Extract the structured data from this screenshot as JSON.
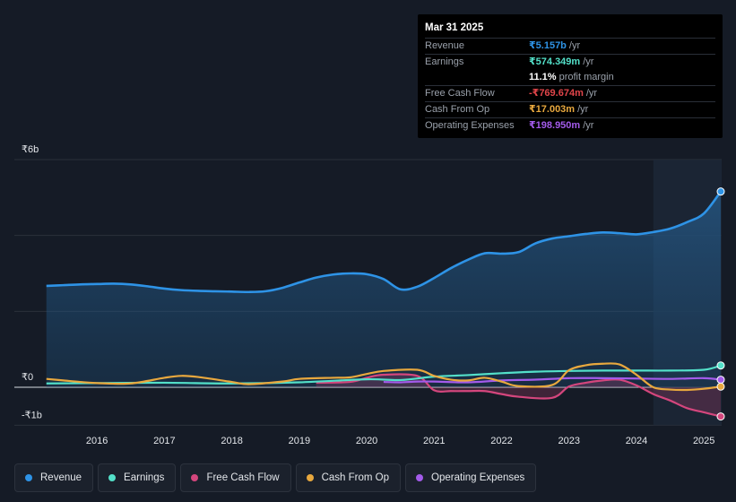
{
  "tooltip": {
    "date": "Mar 31 2025",
    "rows": [
      {
        "label": "Revenue",
        "value": "₹5.157b",
        "unit": "/yr",
        "color": "#2e93e6"
      },
      {
        "label": "Earnings",
        "value": "₹574.349m",
        "unit": "/yr",
        "color": "#53e0c9"
      },
      {
        "label": "",
        "value": "11.1%",
        "unit": "profit margin",
        "color": "#ffffff"
      },
      {
        "label": "Free Cash Flow",
        "value": "-₹769.674m",
        "unit": "/yr",
        "color": "#e0454a"
      },
      {
        "label": "Cash From Op",
        "value": "₹17.003m",
        "unit": "/yr",
        "color": "#e8a83e"
      },
      {
        "label": "Operating Expenses",
        "value": "₹198.950m",
        "unit": "/yr",
        "color": "#a35bea"
      }
    ]
  },
  "legend": [
    {
      "label": "Revenue",
      "color": "#2e93e6"
    },
    {
      "label": "Earnings",
      "color": "#53e0c9"
    },
    {
      "label": "Free Cash Flow",
      "color": "#d4467d"
    },
    {
      "label": "Cash From Op",
      "color": "#e8a83e"
    },
    {
      "label": "Operating Expenses",
      "color": "#a35bea"
    }
  ],
  "chart_data": {
    "type": "line",
    "title": "",
    "xlabel": "",
    "ylabel": "",
    "y_tick_labels": [
      {
        "label": "₹6b",
        "value": 6
      },
      {
        "label": "₹0",
        "value": 0
      },
      {
        "label": "-₹1b",
        "value": -1
      }
    ],
    "ylim": [
      -1,
      6
    ],
    "xlim": [
      2015.2,
      2025.25
    ],
    "x_ticks": [
      2016,
      2017,
      2018,
      2019,
      2020,
      2021,
      2022,
      2023,
      2024,
      2025
    ],
    "highlight_start": 2024.25,
    "series": [
      {
        "name": "Revenue",
        "color": "#2e93e6",
        "fill": true,
        "points": [
          [
            2015.25,
            2.67
          ],
          [
            2015.5,
            2.69
          ],
          [
            2015.75,
            2.71
          ],
          [
            2016.0,
            2.72
          ],
          [
            2016.25,
            2.73
          ],
          [
            2016.5,
            2.71
          ],
          [
            2016.75,
            2.66
          ],
          [
            2017.0,
            2.6
          ],
          [
            2017.25,
            2.56
          ],
          [
            2017.5,
            2.54
          ],
          [
            2017.75,
            2.53
          ],
          [
            2018.0,
            2.52
          ],
          [
            2018.25,
            2.51
          ],
          [
            2018.5,
            2.53
          ],
          [
            2018.75,
            2.62
          ],
          [
            2019.0,
            2.76
          ],
          [
            2019.25,
            2.89
          ],
          [
            2019.5,
            2.97
          ],
          [
            2019.75,
            3.0
          ],
          [
            2020.0,
            2.98
          ],
          [
            2020.25,
            2.85
          ],
          [
            2020.5,
            2.58
          ],
          [
            2020.75,
            2.65
          ],
          [
            2021.0,
            2.88
          ],
          [
            2021.25,
            3.14
          ],
          [
            2021.5,
            3.36
          ],
          [
            2021.75,
            3.53
          ],
          [
            2022.0,
            3.52
          ],
          [
            2022.25,
            3.56
          ],
          [
            2022.5,
            3.79
          ],
          [
            2022.75,
            3.92
          ],
          [
            2023.0,
            3.98
          ],
          [
            2023.25,
            4.04
          ],
          [
            2023.5,
            4.08
          ],
          [
            2023.75,
            4.06
          ],
          [
            2024.0,
            4.03
          ],
          [
            2024.25,
            4.09
          ],
          [
            2024.5,
            4.18
          ],
          [
            2024.75,
            4.35
          ],
          [
            2025.0,
            4.58
          ],
          [
            2025.25,
            5.157
          ]
        ]
      },
      {
        "name": "Earnings",
        "color": "#53e0c9",
        "fill": false,
        "points": [
          [
            2015.25,
            0.1
          ],
          [
            2016.0,
            0.11
          ],
          [
            2017.0,
            0.12
          ],
          [
            2018.0,
            0.1
          ],
          [
            2019.0,
            0.13
          ],
          [
            2020.0,
            0.21
          ],
          [
            2020.5,
            0.19
          ],
          [
            2021.0,
            0.28
          ],
          [
            2021.5,
            0.32
          ],
          [
            2022.0,
            0.37
          ],
          [
            2022.5,
            0.41
          ],
          [
            2023.0,
            0.43
          ],
          [
            2023.5,
            0.44
          ],
          [
            2024.0,
            0.44
          ],
          [
            2024.5,
            0.44
          ],
          [
            2025.0,
            0.46
          ],
          [
            2025.25,
            0.574
          ]
        ]
      },
      {
        "name": "Free Cash Flow",
        "color": "#d4467d",
        "fill": true,
        "points": [
          [
            2019.25,
            0.12
          ],
          [
            2019.75,
            0.14
          ],
          [
            2020.0,
            0.25
          ],
          [
            2020.25,
            0.33
          ],
          [
            2020.75,
            0.3
          ],
          [
            2021.0,
            -0.08
          ],
          [
            2021.25,
            -0.1
          ],
          [
            2021.5,
            -0.1
          ],
          [
            2021.75,
            -0.1
          ],
          [
            2022.0,
            -0.18
          ],
          [
            2022.25,
            -0.25
          ],
          [
            2022.75,
            -0.28
          ],
          [
            2023.0,
            0.02
          ],
          [
            2023.25,
            0.12
          ],
          [
            2023.5,
            0.18
          ],
          [
            2023.75,
            0.2
          ],
          [
            2024.0,
            0.05
          ],
          [
            2024.25,
            -0.18
          ],
          [
            2024.5,
            -0.35
          ],
          [
            2024.75,
            -0.55
          ],
          [
            2025.0,
            -0.66
          ],
          [
            2025.25,
            -0.77
          ]
        ]
      },
      {
        "name": "Cash From Op",
        "color": "#e8a83e",
        "fill": false,
        "points": [
          [
            2015.25,
            0.22
          ],
          [
            2015.5,
            0.18
          ],
          [
            2015.75,
            0.14
          ],
          [
            2016.0,
            0.11
          ],
          [
            2016.5,
            0.1
          ],
          [
            2017.0,
            0.25
          ],
          [
            2017.25,
            0.3
          ],
          [
            2017.5,
            0.27
          ],
          [
            2018.0,
            0.14
          ],
          [
            2018.25,
            0.08
          ],
          [
            2018.75,
            0.15
          ],
          [
            2019.0,
            0.22
          ],
          [
            2019.5,
            0.25
          ],
          [
            2019.75,
            0.26
          ],
          [
            2020.0,
            0.35
          ],
          [
            2020.25,
            0.43
          ],
          [
            2020.75,
            0.46
          ],
          [
            2021.0,
            0.3
          ],
          [
            2021.25,
            0.2
          ],
          [
            2021.5,
            0.18
          ],
          [
            2021.75,
            0.25
          ],
          [
            2022.0,
            0.15
          ],
          [
            2022.25,
            0.03
          ],
          [
            2022.75,
            0.06
          ],
          [
            2023.0,
            0.45
          ],
          [
            2023.25,
            0.58
          ],
          [
            2023.5,
            0.62
          ],
          [
            2023.75,
            0.6
          ],
          [
            2024.0,
            0.33
          ],
          [
            2024.25,
            0.0
          ],
          [
            2024.5,
            -0.06
          ],
          [
            2024.75,
            -0.07
          ],
          [
            2025.0,
            -0.04
          ],
          [
            2025.25,
            0.017
          ]
        ]
      },
      {
        "name": "Operating Expenses",
        "color": "#a35bea",
        "fill": false,
        "points": [
          [
            2020.25,
            0.14
          ],
          [
            2020.5,
            0.13
          ],
          [
            2020.75,
            0.15
          ],
          [
            2021.0,
            0.15
          ],
          [
            2021.5,
            0.13
          ],
          [
            2022.0,
            0.18
          ],
          [
            2022.5,
            0.2
          ],
          [
            2023.0,
            0.24
          ],
          [
            2023.5,
            0.24
          ],
          [
            2024.0,
            0.23
          ],
          [
            2024.5,
            0.22
          ],
          [
            2025.0,
            0.24
          ],
          [
            2025.25,
            0.199
          ]
        ]
      }
    ]
  }
}
